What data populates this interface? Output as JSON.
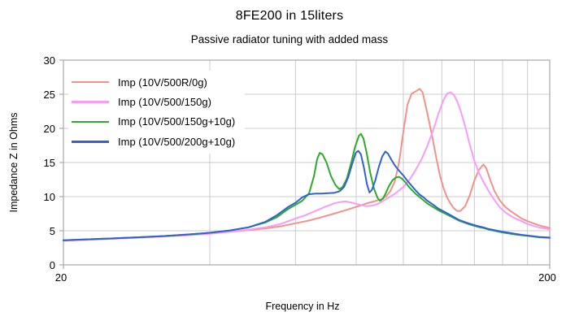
{
  "chart_data": {
    "type": "line",
    "title": "8FE200 in 15liters",
    "subtitle": "Passive radiator tuning with added mass",
    "xlabel": "Frequency in Hz",
    "ylabel": "Impedance Z in Ohms",
    "x_scale": "log",
    "xlim": [
      20,
      200
    ],
    "ylim": [
      0,
      30
    ],
    "grid": true,
    "grid_color": "#cccccc",
    "border_color": "#a8a8a8",
    "x_gridlines": [
      40,
      60,
      80,
      100,
      120,
      140,
      160,
      180
    ],
    "x_tick_labels": [
      {
        "value": 20,
        "label": "20"
      },
      {
        "value": 200,
        "label": "200"
      }
    ],
    "y_ticks": [
      0,
      5,
      10,
      15,
      20,
      25,
      30
    ],
    "legend_position": "top-left-inside",
    "series": [
      {
        "name": "Imp (10V/500R/0g)",
        "color": "#F2928B",
        "points": [
          [
            20,
            3.6
          ],
          [
            24,
            3.8
          ],
          [
            28,
            4.0
          ],
          [
            32,
            4.2
          ],
          [
            36,
            4.4
          ],
          [
            40,
            4.6
          ],
          [
            44,
            4.85
          ],
          [
            48,
            5.1
          ],
          [
            52,
            5.35
          ],
          [
            56,
            5.65
          ],
          [
            60,
            6.1
          ],
          [
            64,
            6.5
          ],
          [
            68,
            7.0
          ],
          [
            72,
            7.5
          ],
          [
            76,
            8.0
          ],
          [
            80,
            8.5
          ],
          [
            84,
            9.0
          ],
          [
            87,
            9.3
          ],
          [
            90,
            9.6
          ],
          [
            92,
            10.0
          ],
          [
            94,
            10.8
          ],
          [
            96,
            12.2
          ],
          [
            98,
            15.0
          ],
          [
            100,
            19.5
          ],
          [
            102,
            23.5
          ],
          [
            104,
            25.1
          ],
          [
            106,
            25.4
          ],
          [
            108,
            25.8
          ],
          [
            109.5,
            25.3
          ],
          [
            111,
            23.5
          ],
          [
            113,
            21.0
          ],
          [
            115,
            18.3
          ],
          [
            117,
            15.5
          ],
          [
            119,
            13.0
          ],
          [
            121,
            11.2
          ],
          [
            123,
            9.9
          ],
          [
            125,
            9.0
          ],
          [
            127,
            8.3
          ],
          [
            129,
            7.9
          ],
          [
            131,
            7.9
          ],
          [
            134,
            8.6
          ],
          [
            137,
            10.2
          ],
          [
            140,
            12.4
          ],
          [
            143,
            13.9
          ],
          [
            146,
            14.7
          ],
          [
            148,
            14.2
          ],
          [
            151,
            12.4
          ],
          [
            154,
            10.8
          ],
          [
            158,
            9.4
          ],
          [
            162,
            8.5
          ],
          [
            166,
            7.9
          ],
          [
            170,
            7.4
          ],
          [
            175,
            6.8
          ],
          [
            180,
            6.4
          ],
          [
            185,
            6.1
          ],
          [
            190,
            5.8
          ],
          [
            195,
            5.6
          ],
          [
            200,
            5.4
          ]
        ]
      },
      {
        "name": "Imp (10V/500/150g)",
        "color": "#F99CF9",
        "points": [
          [
            20,
            3.55
          ],
          [
            24,
            3.75
          ],
          [
            28,
            3.95
          ],
          [
            32,
            4.15
          ],
          [
            36,
            4.35
          ],
          [
            40,
            4.55
          ],
          [
            44,
            4.85
          ],
          [
            48,
            5.15
          ],
          [
            52,
            5.5
          ],
          [
            56,
            6.0
          ],
          [
            60,
            6.8
          ],
          [
            63,
            7.3
          ],
          [
            66,
            7.9
          ],
          [
            69,
            8.5
          ],
          [
            72,
            9.0
          ],
          [
            74,
            9.2
          ],
          [
            76,
            9.3
          ],
          [
            78,
            9.15
          ],
          [
            80,
            8.95
          ],
          [
            82,
            8.75
          ],
          [
            84,
            8.6
          ],
          [
            86,
            8.65
          ],
          [
            88,
            8.85
          ],
          [
            90,
            9.2
          ],
          [
            93,
            9.8
          ],
          [
            96,
            10.4
          ],
          [
            100,
            11.4
          ],
          [
            103,
            12.5
          ],
          [
            106,
            13.9
          ],
          [
            109,
            15.5
          ],
          [
            112,
            17.4
          ],
          [
            115,
            19.6
          ],
          [
            118,
            22.1
          ],
          [
            121,
            24.2
          ],
          [
            123,
            25.1
          ],
          [
            125,
            25.3
          ],
          [
            127,
            24.9
          ],
          [
            129,
            24.0
          ],
          [
            131,
            22.7
          ],
          [
            134,
            20.3
          ],
          [
            137,
            17.6
          ],
          [
            140,
            15.2
          ],
          [
            143,
            13.5
          ],
          [
            146,
            12.2
          ],
          [
            149,
            11.1
          ],
          [
            152,
            10.1
          ],
          [
            155,
            9.2
          ],
          [
            158,
            8.4
          ],
          [
            162,
            7.7
          ],
          [
            166,
            7.2
          ],
          [
            170,
            6.8
          ],
          [
            175,
            6.4
          ],
          [
            180,
            6.0
          ],
          [
            185,
            5.7
          ],
          [
            190,
            5.5
          ],
          [
            195,
            5.35
          ],
          [
            200,
            5.2
          ]
        ]
      },
      {
        "name": "Imp (10V/500/150g+10g)",
        "color": "#2BAD2B",
        "points": [
          [
            20,
            3.6
          ],
          [
            24,
            3.82
          ],
          [
            28,
            4.02
          ],
          [
            32,
            4.22
          ],
          [
            36,
            4.45
          ],
          [
            40,
            4.7
          ],
          [
            44,
            5.05
          ],
          [
            48,
            5.5
          ],
          [
            52,
            6.2
          ],
          [
            55,
            7.0
          ],
          [
            58,
            8.2
          ],
          [
            60,
            8.8
          ],
          [
            62,
            9.4
          ],
          [
            64,
            10.5
          ],
          [
            65.5,
            13.0
          ],
          [
            66.5,
            15.5
          ],
          [
            67.3,
            16.4
          ],
          [
            68.2,
            16.2
          ],
          [
            69.5,
            15.0
          ],
          [
            71,
            13.0
          ],
          [
            72.5,
            11.7
          ],
          [
            73.8,
            11.1
          ],
          [
            75,
            11.4
          ],
          [
            76.5,
            12.6
          ],
          [
            78,
            14.8
          ],
          [
            79.5,
            17.2
          ],
          [
            81,
            18.9
          ],
          [
            81.8,
            19.2
          ],
          [
            82.8,
            18.5
          ],
          [
            84,
            16.5
          ],
          [
            85.5,
            13.5
          ],
          [
            87,
            11.2
          ],
          [
            88.5,
            9.8
          ],
          [
            89.5,
            9.4
          ],
          [
            90.8,
            9.7
          ],
          [
            92,
            10.5
          ],
          [
            93.5,
            11.6
          ],
          [
            95,
            12.4
          ],
          [
            96.5,
            12.8
          ],
          [
            98,
            12.9
          ],
          [
            99.5,
            12.6
          ],
          [
            101,
            12.1
          ],
          [
            103,
            11.3
          ],
          [
            106,
            10.4
          ],
          [
            109,
            9.7
          ],
          [
            112,
            9.0
          ],
          [
            115,
            8.5
          ],
          [
            118,
            8.0
          ],
          [
            122,
            7.5
          ],
          [
            126,
            7.0
          ],
          [
            130,
            6.5
          ],
          [
            134,
            6.15
          ],
          [
            138,
            5.85
          ],
          [
            142,
            5.6
          ],
          [
            146,
            5.4
          ],
          [
            150,
            5.15
          ],
          [
            155,
            4.95
          ],
          [
            160,
            4.75
          ],
          [
            165,
            4.6
          ],
          [
            170,
            4.45
          ],
          [
            175,
            4.35
          ],
          [
            180,
            4.25
          ],
          [
            185,
            4.15
          ],
          [
            190,
            4.05
          ],
          [
            195,
            4.0
          ],
          [
            200,
            3.95
          ]
        ]
      },
      {
        "name": "Imp (10V/500/200g+10g)",
        "color": "#3361D1",
        "points": [
          [
            20,
            3.6
          ],
          [
            24,
            3.82
          ],
          [
            28,
            4.02
          ],
          [
            32,
            4.22
          ],
          [
            36,
            4.45
          ],
          [
            40,
            4.7
          ],
          [
            44,
            5.05
          ],
          [
            48,
            5.5
          ],
          [
            52,
            6.3
          ],
          [
            55,
            7.3
          ],
          [
            58,
            8.5
          ],
          [
            60,
            9.1
          ],
          [
            62,
            9.9
          ],
          [
            64,
            10.35
          ],
          [
            66,
            10.45
          ],
          [
            68,
            10.45
          ],
          [
            70,
            10.5
          ],
          [
            72,
            10.55
          ],
          [
            74,
            10.8
          ],
          [
            75.5,
            11.4
          ],
          [
            77,
            12.8
          ],
          [
            78.5,
            14.8
          ],
          [
            79.8,
            16.4
          ],
          [
            80.8,
            16.7
          ],
          [
            81.8,
            16.2
          ],
          [
            83,
            14.2
          ],
          [
            84.2,
            11.8
          ],
          [
            85.2,
            10.6
          ],
          [
            86.2,
            11.0
          ],
          [
            87.5,
            12.3
          ],
          [
            89,
            14.3
          ],
          [
            90.5,
            15.9
          ],
          [
            91.8,
            16.6
          ],
          [
            93,
            16.3
          ],
          [
            94.5,
            15.4
          ],
          [
            96,
            14.6
          ],
          [
            98,
            13.8
          ],
          [
            100,
            13.1
          ],
          [
            102,
            12.3
          ],
          [
            104,
            11.6
          ],
          [
            106,
            10.9
          ],
          [
            108,
            10.3
          ],
          [
            110,
            9.9
          ],
          [
            112,
            9.4
          ],
          [
            115,
            8.85
          ],
          [
            118,
            8.25
          ],
          [
            122,
            7.7
          ],
          [
            126,
            7.15
          ],
          [
            130,
            6.6
          ],
          [
            134,
            6.25
          ],
          [
            138,
            5.95
          ],
          [
            142,
            5.7
          ],
          [
            146,
            5.5
          ],
          [
            150,
            5.25
          ],
          [
            155,
            5.05
          ],
          [
            160,
            4.85
          ],
          [
            165,
            4.7
          ],
          [
            170,
            4.55
          ],
          [
            175,
            4.4
          ],
          [
            180,
            4.3
          ],
          [
            185,
            4.2
          ],
          [
            190,
            4.1
          ],
          [
            195,
            4.05
          ],
          [
            200,
            4.0
          ]
        ]
      }
    ]
  }
}
